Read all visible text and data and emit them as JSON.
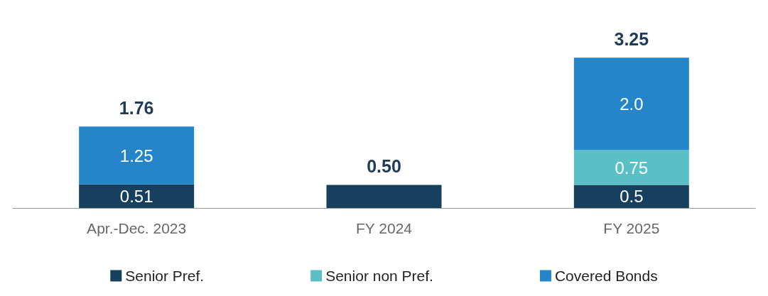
{
  "chart_data": {
    "type": "bar",
    "stacked": true,
    "categories": [
      "Apr.-Dec. 2023",
      "FY 2024",
      "FY 2025"
    ],
    "series": [
      {
        "name": "Senior Pref.",
        "color": "#17405f",
        "values": [
          0.51,
          0.5,
          0.5
        ],
        "value_labels": [
          "0.51",
          null,
          "0.5"
        ]
      },
      {
        "name": "Senior non Pref.",
        "color": "#5bbfc6",
        "values": [
          null,
          null,
          0.75
        ],
        "value_labels": [
          null,
          null,
          "0.75"
        ]
      },
      {
        "name": "Covered Bonds",
        "color": "#2585c9",
        "values": [
          1.25,
          null,
          2.0
        ],
        "value_labels": [
          "1.25",
          null,
          "2.0"
        ]
      }
    ],
    "totals": [
      "1.76",
      "0.50",
      "3.25"
    ],
    "legend": "bottom"
  }
}
